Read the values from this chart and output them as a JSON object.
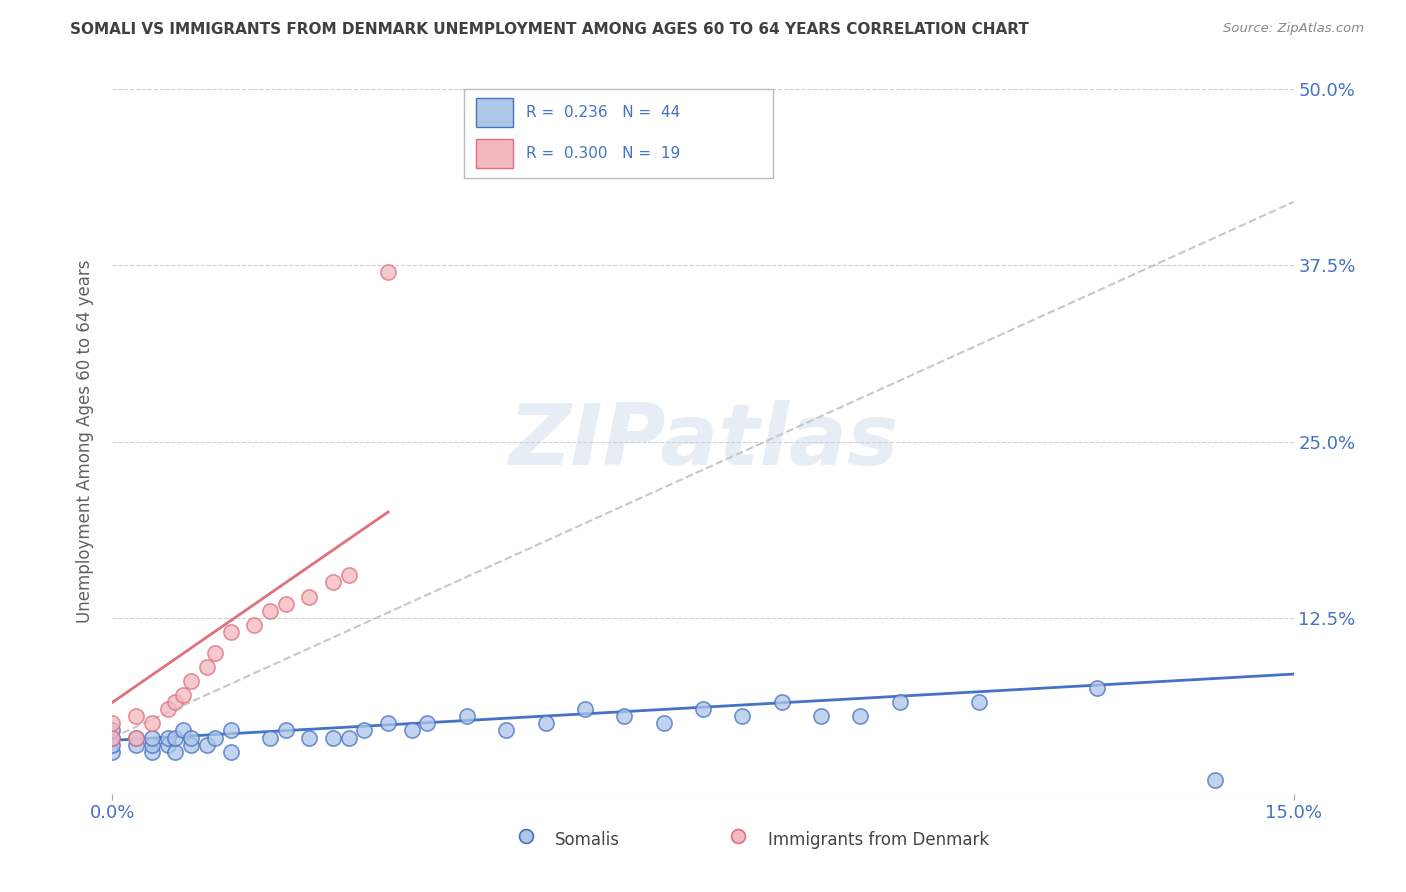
{
  "title": "SOMALI VS IMMIGRANTS FROM DENMARK UNEMPLOYMENT AMONG AGES 60 TO 64 YEARS CORRELATION CHART",
  "source": "Source: ZipAtlas.com",
  "ylabel": "Unemployment Among Ages 60 to 64 years",
  "xlim": [
    0.0,
    0.15
  ],
  "ylim": [
    0.0,
    0.5
  ],
  "y_ticks": [
    0.0,
    0.125,
    0.25,
    0.375,
    0.5
  ],
  "y_tick_labels": [
    "",
    "12.5%",
    "25.0%",
    "37.5%",
    "50.0%"
  ],
  "watermark": "ZIPatlas",
  "legend_labels": [
    "Somalis",
    "Immigrants from Denmark"
  ],
  "somali_R": 0.236,
  "somali_N": 44,
  "denmark_R": 0.3,
  "denmark_N": 19,
  "somali_color": "#aec6e8",
  "denmark_color": "#f4b8c0",
  "somali_line_color": "#4472c4",
  "denmark_line_color": "#e07080",
  "trend_line_color": "#c8c8c8",
  "grid_color": "#d0d0d0",
  "title_color": "#404040",
  "axis_label_color": "#606060",
  "tick_label_color": "#4472c4",
  "somali_points_x": [
    0.0,
    0.0,
    0.0,
    0.0,
    0.003,
    0.003,
    0.005,
    0.005,
    0.005,
    0.007,
    0.007,
    0.008,
    0.008,
    0.009,
    0.01,
    0.01,
    0.012,
    0.013,
    0.015,
    0.015,
    0.02,
    0.022,
    0.025,
    0.028,
    0.03,
    0.032,
    0.035,
    0.038,
    0.04,
    0.045,
    0.05,
    0.055,
    0.06,
    0.065,
    0.07,
    0.075,
    0.08,
    0.085,
    0.09,
    0.095,
    0.1,
    0.11,
    0.125,
    0.14
  ],
  "somali_points_y": [
    0.03,
    0.035,
    0.04,
    0.045,
    0.035,
    0.04,
    0.03,
    0.035,
    0.04,
    0.035,
    0.04,
    0.03,
    0.04,
    0.045,
    0.035,
    0.04,
    0.035,
    0.04,
    0.03,
    0.045,
    0.04,
    0.045,
    0.04,
    0.04,
    0.04,
    0.045,
    0.05,
    0.045,
    0.05,
    0.055,
    0.045,
    0.05,
    0.06,
    0.055,
    0.05,
    0.06,
    0.055,
    0.065,
    0.055,
    0.055,
    0.065,
    0.065,
    0.075,
    0.01
  ],
  "denmark_points_x": [
    0.0,
    0.0,
    0.003,
    0.003,
    0.005,
    0.007,
    0.008,
    0.009,
    0.01,
    0.012,
    0.013,
    0.015,
    0.018,
    0.02,
    0.022,
    0.025,
    0.028,
    0.03,
    0.035
  ],
  "denmark_points_y": [
    0.04,
    0.05,
    0.04,
    0.055,
    0.05,
    0.06,
    0.065,
    0.07,
    0.08,
    0.09,
    0.1,
    0.115,
    0.12,
    0.13,
    0.135,
    0.14,
    0.15,
    0.155,
    0.37
  ],
  "somali_trend_x": [
    0.0,
    0.15
  ],
  "somali_trend_y": [
    0.038,
    0.085
  ],
  "denmark_trend_x": [
    0.0,
    0.035
  ],
  "denmark_trend_y": [
    0.065,
    0.2
  ],
  "gray_trend_x": [
    0.0,
    0.15
  ],
  "gray_trend_y": [
    0.04,
    0.42
  ]
}
